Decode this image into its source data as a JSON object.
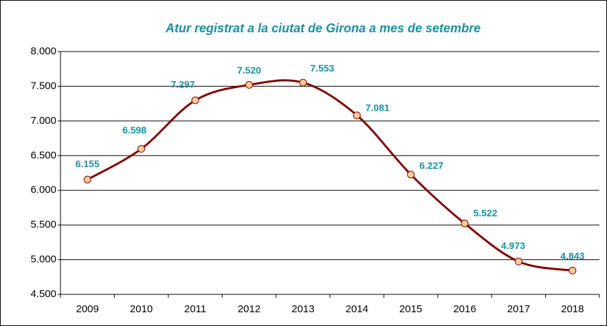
{
  "chart_data": {
    "type": "line",
    "title": "Atur registrat a la ciutat de Girona a mes de setembre",
    "categories": [
      "2009",
      "2010",
      "2011",
      "2012",
      "2013",
      "2014",
      "2015",
      "2016",
      "2017",
      "2018"
    ],
    "series": [
      {
        "name": "Atur registrat",
        "color": "#7f0000",
        "marker_color": "#ffcc99",
        "values": [
          6155,
          6598,
          7297,
          7520,
          7553,
          7081,
          6227,
          5522,
          4973,
          4843
        ],
        "value_labels": [
          "6.155",
          "6.598",
          "7.297",
          "7.520",
          "7.553",
          "7.081",
          "6.227",
          "5.522",
          "4.973",
          "4.843"
        ]
      }
    ],
    "ylim": [
      4500,
      8000
    ],
    "yticks": [
      {
        "value": 4500,
        "label": "4.500"
      },
      {
        "value": 5000,
        "label": "5.000"
      },
      {
        "value": 5500,
        "label": "5.500"
      },
      {
        "value": 6000,
        "label": "6.000"
      },
      {
        "value": 6500,
        "label": "6.500"
      },
      {
        "value": 7000,
        "label": "7.000"
      },
      {
        "value": 7500,
        "label": "7.500"
      },
      {
        "value": 8000,
        "label": "8.000"
      }
    ],
    "grid": true,
    "smooth": true
  }
}
